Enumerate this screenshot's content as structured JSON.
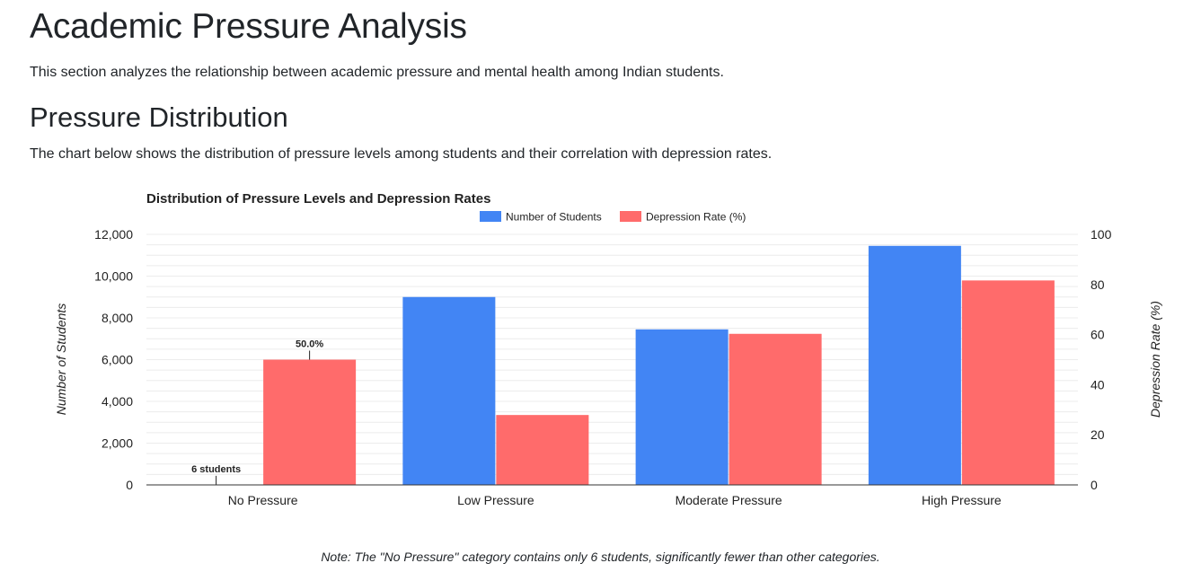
{
  "page": {
    "title": "Academic Pressure Analysis",
    "intro": "This section analyzes the relationship between academic pressure and mental health among Indian students.",
    "section_title": "Pressure Distribution",
    "section_desc": "The chart below shows the distribution of pressure levels among students and their correlation with depression rates.",
    "note": "Note: The \"No Pressure\" category contains only 6 students, significantly fewer than other categories."
  },
  "chart_data": {
    "type": "bar",
    "title": "Distribution of Pressure Levels and Depression Rates",
    "categories": [
      "No Pressure",
      "Low Pressure",
      "Moderate Pressure",
      "High Pressure"
    ],
    "series": [
      {
        "name": "Number of Students",
        "axis": "left",
        "color": "#4285f4",
        "values": [
          6,
          9000,
          7450,
          11450
        ]
      },
      {
        "name": "Depression Rate (%)",
        "axis": "right",
        "color": "#ff6b6b",
        "values": [
          50.0,
          27.9,
          60.3,
          81.6
        ]
      }
    ],
    "ylabel": "Number of Students",
    "ylabel_right": "Depression Rate (%)",
    "ylim": [
      0,
      12000
    ],
    "ylim_right": [
      0,
      100
    ],
    "yticks": [
      "0",
      "2,000",
      "4,000",
      "6,000",
      "8,000",
      "10,000",
      "12,000"
    ],
    "yticks_right": [
      "0",
      "20",
      "40",
      "60",
      "80",
      "100"
    ],
    "annotations": [
      {
        "category": "No Pressure",
        "series": "Number of Students",
        "text": "6 students"
      },
      {
        "category": "No Pressure",
        "series": "Depression Rate (%)",
        "text": "50.0%"
      }
    ],
    "legend_position": "top",
    "grid": true
  }
}
